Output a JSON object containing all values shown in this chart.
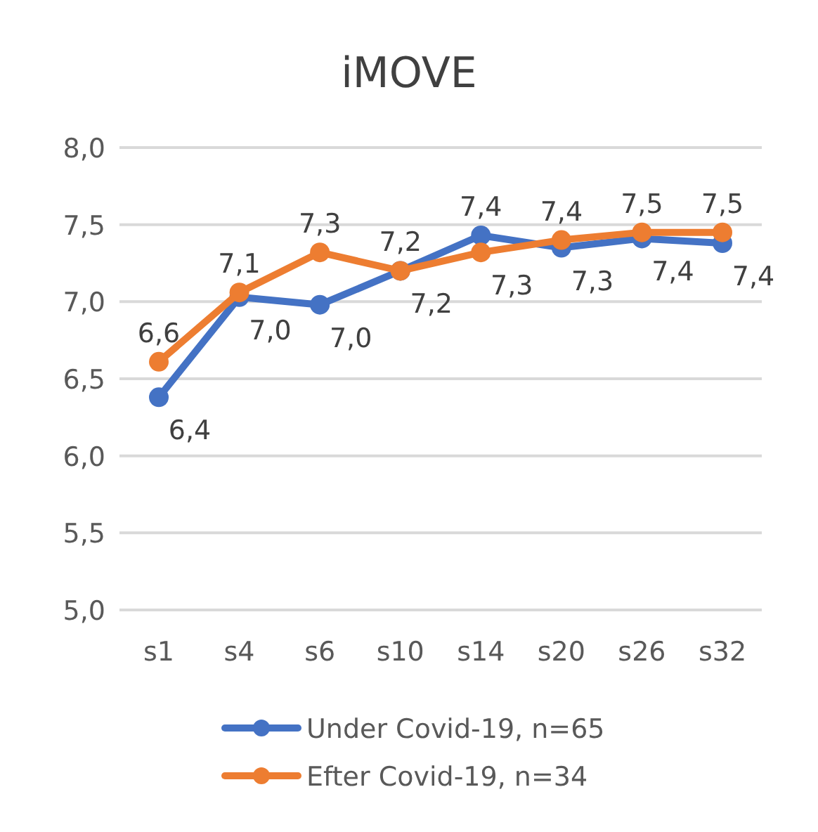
{
  "chart_data": {
    "type": "line",
    "title": "iMOVE",
    "categories": [
      "s1",
      "s4",
      "s6",
      "s10",
      "s14",
      "s20",
      "s26",
      "s32"
    ],
    "series": [
      {
        "name": "Under Covid-19, n=65",
        "color": "#4472c4",
        "values": [
          6.38,
          7.03,
          6.98,
          7.2,
          7.43,
          7.35,
          7.41,
          7.38
        ],
        "value_labels": [
          "6,4",
          "7,0",
          "7,0",
          "7,2",
          "7,4",
          "7,3",
          "7,4",
          "7,4"
        ]
      },
      {
        "name": "Efter Covid-19, n=34",
        "color": "#ed7d31",
        "values": [
          6.61,
          7.06,
          7.32,
          7.2,
          7.32,
          7.4,
          7.45,
          7.45
        ],
        "value_labels": [
          "6,6",
          "7,1",
          "7,3",
          "7,2",
          "7,3",
          "7,4",
          "7,5",
          "7,5"
        ]
      }
    ],
    "ylim": [
      5,
      8
    ],
    "yticks": [
      {
        "value": 5,
        "label": "5,0"
      },
      {
        "value": 5.5,
        "label": "5,5"
      },
      {
        "value": 6,
        "label": "6,0"
      },
      {
        "value": 6.5,
        "label": "6,5"
      },
      {
        "value": 7,
        "label": "7,0"
      },
      {
        "value": 7.5,
        "label": "7,5"
      },
      {
        "value": 8,
        "label": "8,0"
      }
    ],
    "grid": "y",
    "legend": "bottom",
    "marker": "circle",
    "line_style": "solid"
  }
}
